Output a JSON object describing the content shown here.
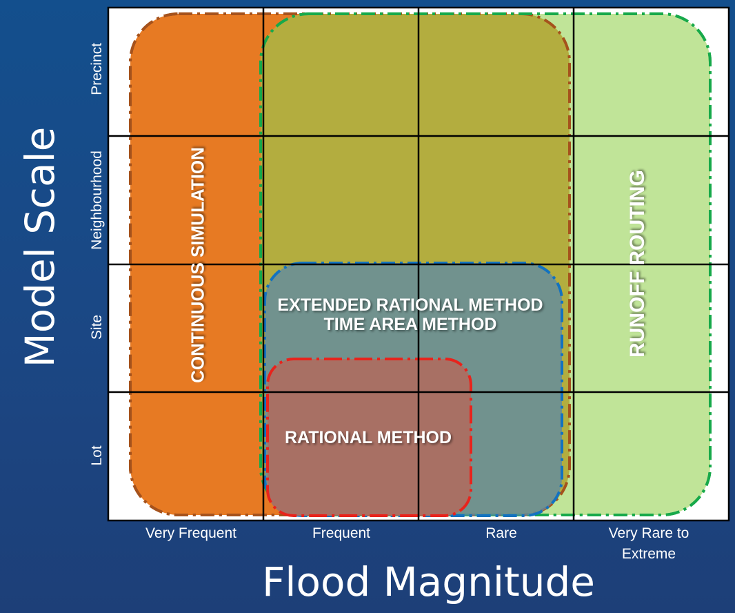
{
  "diagram": {
    "x_axis_title": "Flood Magnitude",
    "y_axis_title": "Model Scale",
    "columns": [
      "Very Frequent",
      "Frequent",
      "Rare",
      "Very Rare to\nExtreme"
    ],
    "rows": [
      "Precinct",
      "Neighbourhood",
      "Site",
      "Lot"
    ],
    "regions": {
      "continuous_simulation": {
        "label": "CONTINUOUS SIMULATION",
        "fill": "#e77a23",
        "stroke": "#a5521c"
      },
      "runoff_routing": {
        "label": "RUNOFF ROUTING",
        "fill": "#bde291",
        "stroke": "#17a94a"
      },
      "extended_rational": {
        "label_line1": "EXTENDED RATIONAL METHOD",
        "label_line2": "TIME AREA METHOD",
        "fill": "#5f8aa4",
        "stroke": "#1372c0"
      },
      "rational_method": {
        "label": "RATIONAL METHOD",
        "fill": "#a87064",
        "stroke": "#e8231c"
      }
    },
    "colors": {
      "background_top": "#134f8d",
      "background_bottom": "#1d3f78",
      "grid_line": "#000000",
      "continuous_runoff_overlap": "#b3ad3f"
    }
  }
}
